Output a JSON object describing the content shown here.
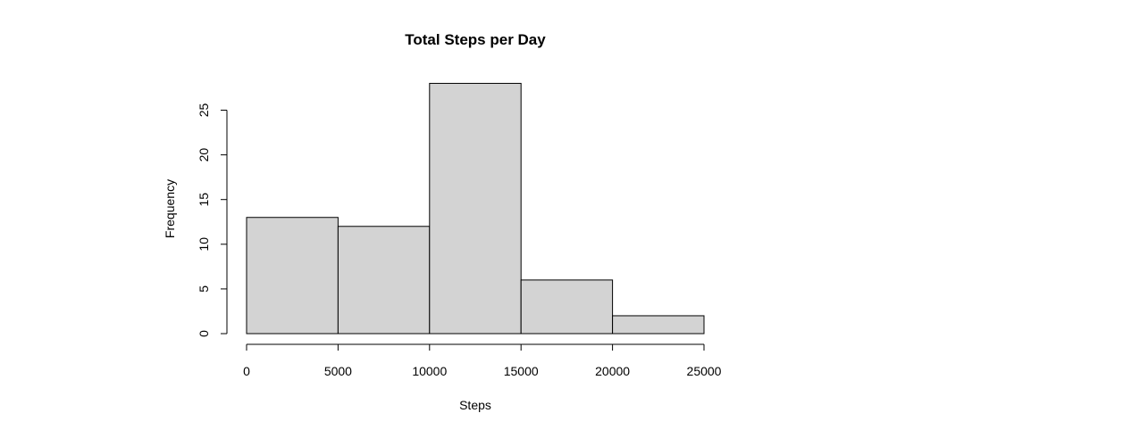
{
  "chart_data": {
    "type": "bar",
    "title": "Total Steps per Day",
    "xlabel": "Steps",
    "ylabel": "Frequency",
    "bins": [
      {
        "start": 0,
        "end": 5000,
        "count": 13
      },
      {
        "start": 5000,
        "end": 10000,
        "count": 12
      },
      {
        "start": 10000,
        "end": 15000,
        "count": 28
      },
      {
        "start": 15000,
        "end": 20000,
        "count": 6
      },
      {
        "start": 20000,
        "end": 25000,
        "count": 2
      }
    ],
    "x_ticks": [
      0,
      5000,
      10000,
      15000,
      20000,
      25000
    ],
    "y_ticks": [
      0,
      5,
      10,
      15,
      20,
      25
    ],
    "xlim": [
      0,
      25000
    ],
    "ylim": [
      0,
      28
    ],
    "grid": false,
    "bar_color": "#d3d3d3",
    "edge_color": "#000000"
  }
}
